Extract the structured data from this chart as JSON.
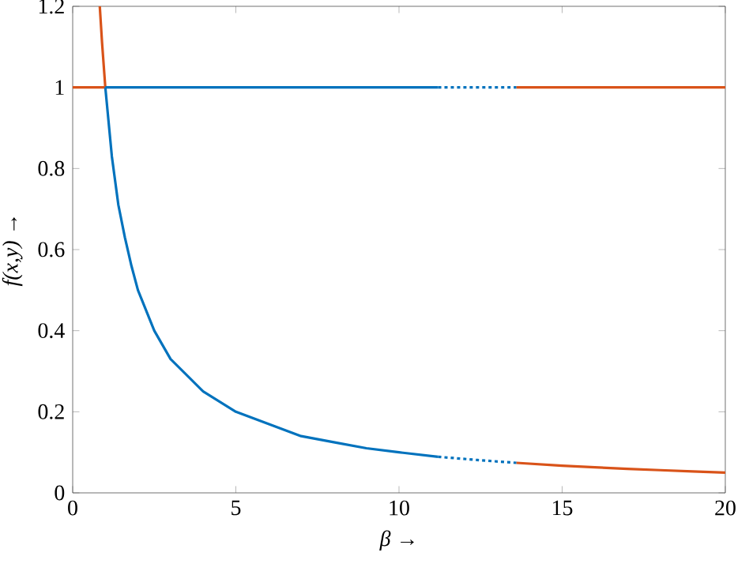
{
  "chart_data": {
    "type": "line",
    "xlabel": "*β* →",
    "ylabel": "*f(x,y)* →",
    "xlim": [
      0,
      20
    ],
    "ylim": [
      0,
      1.2
    ],
    "xticks": [
      0,
      5,
      10,
      15,
      20
    ],
    "yticks": [
      0,
      0.2,
      0.4,
      0.6,
      0.8,
      1,
      1.2
    ],
    "series": [
      {
        "color": "#d95319",
        "line_style": "solid",
        "x": [
          0.83,
          0.9,
          1
        ],
        "values": [
          1.2,
          1.11,
          1
        ]
      },
      {
        "color": "#d95319",
        "line_style": "solid",
        "x": [
          0,
          1
        ],
        "values": [
          1,
          1
        ]
      },
      {
        "color": "#0072bd",
        "line_style": "solid",
        "x": [
          1,
          1.2,
          1.4,
          1.6,
          1.8,
          2,
          2.5,
          3,
          3.5,
          4,
          5,
          6,
          7,
          8,
          9,
          10,
          11.2
        ],
        "values": [
          1,
          0.83,
          0.71,
          0.63,
          0.56,
          0.5,
          0.4,
          0.33,
          0.29,
          0.25,
          0.2,
          0.17,
          0.14,
          0.125,
          0.11,
          0.1,
          0.089
        ]
      },
      {
        "color": "#0072bd",
        "line_style": "solid",
        "x": [
          1,
          11.2
        ],
        "values": [
          1,
          1
        ]
      },
      {
        "color": "#0072bd",
        "line_style": "dotted",
        "x": [
          11.2,
          12.4,
          13.6
        ],
        "values": [
          0.089,
          0.081,
          0.074
        ]
      },
      {
        "color": "#0072bd",
        "line_style": "dotted",
        "x": [
          11.2,
          13.6
        ],
        "values": [
          1,
          1
        ]
      },
      {
        "color": "#d95319",
        "line_style": "solid",
        "x": [
          13.6,
          15,
          16,
          17,
          18,
          19,
          20
        ],
        "values": [
          0.074,
          0.067,
          0.063,
          0.059,
          0.056,
          0.053,
          0.05
        ]
      },
      {
        "color": "#d95319",
        "line_style": "solid",
        "x": [
          13.6,
          20
        ],
        "values": [
          1,
          1
        ]
      }
    ]
  }
}
